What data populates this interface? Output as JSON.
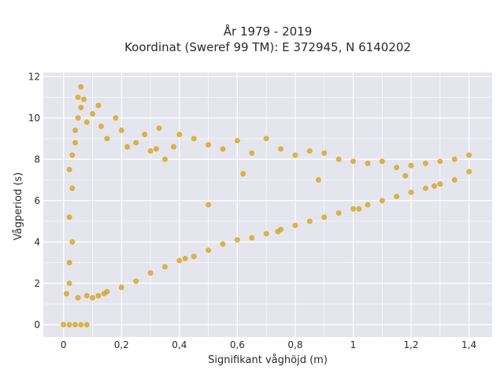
{
  "chart_data": {
    "type": "scatter",
    "title_line1": "År 1979 - 2019",
    "title_line2": "Koordinat (Sweref 99 TM): E 372945, N 6140202",
    "xlabel": "Signifikant våghöjd (m)",
    "ylabel": "Vågperiod (s)",
    "xlim": [
      -0.07,
      1.48
    ],
    "ylim": [
      -0.6,
      12.2
    ],
    "xticks": [
      0,
      0.2,
      0.4,
      0.6,
      0.8,
      1,
      1.2,
      1.4
    ],
    "xtick_labels": [
      "0",
      "0,2",
      "0,4",
      "0,6",
      "0,8",
      "1",
      "1,2",
      "1,4"
    ],
    "yticks": [
      0,
      2,
      4,
      6,
      8,
      10,
      12
    ],
    "ytick_labels": [
      "0",
      "2",
      "4",
      "6",
      "8",
      "10",
      "12"
    ],
    "grid": true,
    "marker_color": "#D4A420",
    "plot_background": "#E5E5EE",
    "grid_color": "#FFFFFF",
    "points": [
      [
        0.01,
        1.5
      ],
      [
        0.02,
        2.0
      ],
      [
        0.02,
        3.0
      ],
      [
        0.03,
        4.0
      ],
      [
        0.02,
        5.2
      ],
      [
        0.03,
        6.6
      ],
      [
        0.02,
        7.5
      ],
      [
        0.03,
        8.2
      ],
      [
        0.04,
        8.8
      ],
      [
        0.04,
        9.4
      ],
      [
        0.05,
        10.0
      ],
      [
        0.06,
        10.5
      ],
      [
        0.05,
        11.0
      ],
      [
        0.06,
        11.5
      ],
      [
        0.07,
        10.9
      ],
      [
        0.08,
        9.8
      ],
      [
        0.1,
        10.2
      ],
      [
        0.12,
        10.6
      ],
      [
        0.13,
        9.6
      ],
      [
        0.15,
        9.0
      ],
      [
        0.18,
        10.0
      ],
      [
        0.2,
        9.4
      ],
      [
        0.22,
        8.6
      ],
      [
        0.25,
        8.8
      ],
      [
        0.28,
        9.2
      ],
      [
        0.3,
        8.4
      ],
      [
        0.33,
        9.5
      ],
      [
        0.35,
        8.0
      ],
      [
        0.38,
        8.6
      ],
      [
        0.4,
        9.2
      ],
      [
        0.45,
        9.0
      ],
      [
        0.5,
        8.7
      ],
      [
        0.55,
        8.5
      ],
      [
        0.6,
        8.9
      ],
      [
        0.65,
        8.3
      ],
      [
        0.7,
        9.0
      ],
      [
        0.75,
        8.5
      ],
      [
        0.8,
        8.2
      ],
      [
        0.85,
        8.4
      ],
      [
        0.9,
        8.3
      ],
      [
        0.95,
        8.0
      ],
      [
        1.0,
        7.9
      ],
      [
        1.05,
        7.8
      ],
      [
        1.1,
        7.9
      ],
      [
        1.15,
        7.6
      ],
      [
        1.2,
        7.7
      ],
      [
        1.25,
        7.8
      ],
      [
        1.3,
        7.9
      ],
      [
        1.35,
        8.0
      ],
      [
        1.4,
        8.2
      ],
      [
        0.05,
        1.3
      ],
      [
        0.08,
        1.4
      ],
      [
        0.1,
        1.3
      ],
      [
        0.12,
        1.4
      ],
      [
        0.15,
        1.6
      ],
      [
        0.2,
        1.8
      ],
      [
        0.25,
        2.1
      ],
      [
        0.3,
        2.5
      ],
      [
        0.35,
        2.8
      ],
      [
        0.4,
        3.1
      ],
      [
        0.45,
        3.3
      ],
      [
        0.5,
        3.6
      ],
      [
        0.55,
        3.9
      ],
      [
        0.6,
        4.1
      ],
      [
        0.65,
        4.2
      ],
      [
        0.7,
        4.4
      ],
      [
        0.75,
        4.6
      ],
      [
        0.8,
        4.8
      ],
      [
        0.85,
        5.0
      ],
      [
        0.9,
        5.2
      ],
      [
        0.95,
        5.4
      ],
      [
        1.0,
        5.6
      ],
      [
        1.05,
        5.8
      ],
      [
        1.1,
        6.0
      ],
      [
        1.15,
        6.2
      ],
      [
        1.2,
        6.4
      ],
      [
        1.25,
        6.6
      ],
      [
        1.3,
        6.8
      ],
      [
        1.35,
        7.0
      ],
      [
        1.4,
        7.4
      ],
      [
        0.0,
        0.0
      ],
      [
        0.02,
        0.0
      ],
      [
        0.04,
        0.0
      ],
      [
        0.06,
        0.0
      ],
      [
        0.08,
        0.0
      ],
      [
        0.14,
        1.5
      ],
      [
        0.42,
        3.2
      ],
      [
        0.74,
        4.5
      ],
      [
        1.02,
        5.6
      ],
      [
        1.28,
        6.7
      ],
      [
        0.32,
        8.5
      ],
      [
        0.62,
        7.3
      ],
      [
        0.88,
        7.0
      ],
      [
        1.18,
        7.2
      ],
      [
        0.5,
        5.8
      ]
    ]
  }
}
